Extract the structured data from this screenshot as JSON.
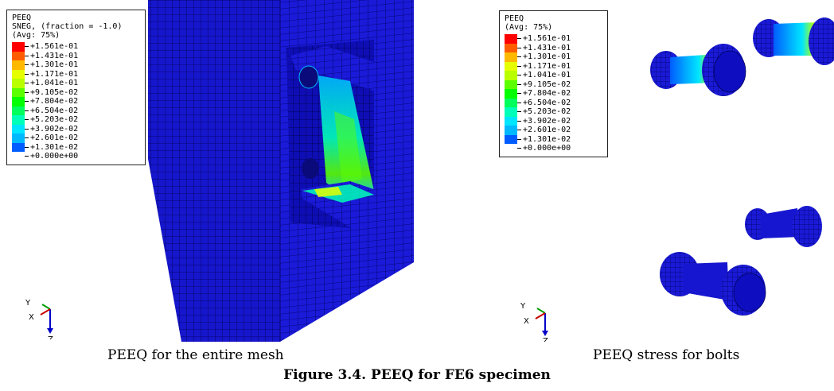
{
  "figure": {
    "title": "Figure 3.4. PEEQ for FE6 specimen",
    "panels": [
      {
        "caption": "PEEQ for the entire mesh",
        "legend": {
          "title_lines": [
            "PEEQ",
            "SNEG, (fraction = -1.0)",
            "(Avg: 75%)"
          ],
          "values": [
            "+1.561e-01",
            "+1.431e-01",
            "+1.301e-01",
            "+1.171e-01",
            "+1.041e-01",
            "+9.105e-02",
            "+7.804e-02",
            "+6.504e-02",
            "+5.203e-02",
            "+3.902e-02",
            "+2.601e-02",
            "+1.301e-02",
            "+0.000e+00"
          ]
        },
        "axes": {
          "y": "Y",
          "x": "X",
          "z": "Z"
        }
      },
      {
        "caption": "PEEQ stress for bolts",
        "legend": {
          "title_lines": [
            "PEEQ",
            "(Avg: 75%)"
          ],
          "values": [
            "+1.561e-01",
            "+1.431e-01",
            "+1.301e-01",
            "+1.171e-01",
            "+1.041e-01",
            "+9.105e-02",
            "+7.804e-02",
            "+6.504e-02",
            "+5.203e-02",
            "+3.902e-02",
            "+2.601e-02",
            "+1.301e-02",
            "+0.000e+00"
          ]
        },
        "axes": {
          "y": "Y",
          "x": "X",
          "z": "Z"
        }
      }
    ]
  },
  "colors": {
    "contour_scale": [
      "#ff0000",
      "#ff5c00",
      "#ffb900",
      "#e6ff00",
      "#b9ff00",
      "#5cff00",
      "#00ff00",
      "#00ff5c",
      "#00ffb9",
      "#00e6ff",
      "#00b9ff",
      "#005cff",
      "#0000ff"
    ],
    "mesh_base": "#1a1ad6",
    "mesh_dark": "#0a0a9e",
    "mesh_line": "#000066"
  }
}
